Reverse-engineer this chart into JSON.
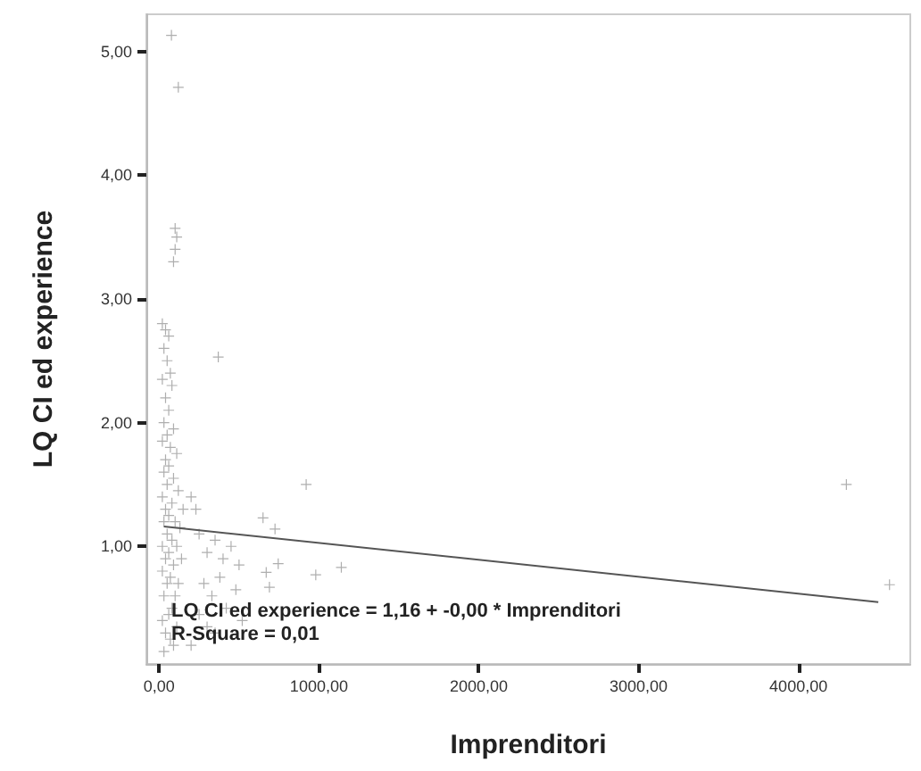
{
  "chart_data": {
    "type": "scatter",
    "xlabel": "Imprenditori",
    "ylabel": "LQ CI ed experience",
    "xlim": [
      -80,
      4700
    ],
    "ylim": [
      0.05,
      5.3
    ],
    "xticks": [
      {
        "value": 0,
        "label": "0,00"
      },
      {
        "value": 1000,
        "label": "1000,00"
      },
      {
        "value": 2000,
        "label": "2000,00"
      },
      {
        "value": 3000,
        "label": "3000,00"
      },
      {
        "value": 4000,
        "label": "4000,00"
      }
    ],
    "yticks": [
      {
        "value": 1,
        "label": "1,00"
      },
      {
        "value": 2,
        "label": "2,00"
      },
      {
        "value": 3,
        "label": "3,00"
      },
      {
        "value": 4,
        "label": "4,00"
      },
      {
        "value": 5,
        "label": "5,00"
      }
    ],
    "grid": false,
    "marker": "cross",
    "annotations": [
      "LQ CI ed experience = 1,16 + -0,00 * Imprenditori",
      "R-Square = 0,01"
    ],
    "series": [
      {
        "color": "#8c8c8c",
        "x": [
          20,
          40,
          60,
          30,
          50,
          70,
          20,
          80,
          40,
          60,
          30,
          90,
          50,
          20,
          70,
          110,
          40,
          60,
          30,
          90,
          50,
          120,
          20,
          80,
          150,
          40,
          60,
          100,
          30,
          130,
          50,
          80,
          20,
          110,
          60,
          40,
          140,
          90,
          20,
          70,
          120,
          50,
          30,
          100,
          80,
          60,
          20,
          110,
          40,
          70,
          90,
          30,
          100,
          90,
          110,
          100,
          77,
          120,
          370,
          920,
          650,
          725,
          1140,
          980,
          745,
          670,
          690,
          4300,
          4570,
          200,
          230,
          250,
          300,
          350,
          400,
          450,
          500,
          280,
          330,
          380,
          420,
          250,
          300,
          480,
          520,
          200,
          350
        ],
        "values": [
          2.8,
          2.75,
          2.7,
          2.6,
          2.5,
          2.4,
          2.35,
          2.3,
          2.2,
          2.1,
          2.0,
          1.95,
          1.9,
          1.85,
          1.8,
          1.75,
          1.7,
          1.65,
          1.6,
          1.55,
          1.5,
          1.45,
          1.4,
          1.35,
          1.3,
          1.3,
          1.25,
          1.2,
          1.2,
          1.15,
          1.1,
          1.05,
          1.0,
          1.0,
          0.95,
          0.9,
          0.9,
          0.85,
          0.8,
          0.75,
          0.7,
          0.7,
          0.6,
          0.6,
          0.5,
          0.45,
          0.4,
          0.35,
          0.3,
          0.25,
          0.2,
          0.15,
          3.4,
          3.3,
          3.5,
          3.57,
          5.13,
          4.71,
          2.53,
          1.5,
          1.23,
          1.14,
          0.83,
          0.77,
          0.86,
          0.79,
          0.67,
          1.5,
          0.69,
          1.4,
          1.3,
          1.1,
          0.95,
          1.05,
          0.9,
          1.0,
          0.85,
          0.7,
          0.6,
          0.75,
          0.5,
          0.45,
          0.35,
          0.65,
          0.4,
          0.2,
          0.3
        ]
      },
      {
        "type": "line",
        "color": "#555555",
        "marker": "none",
        "x": [
          30,
          4500
        ],
        "values": [
          1.16,
          0.55
        ]
      }
    ]
  }
}
